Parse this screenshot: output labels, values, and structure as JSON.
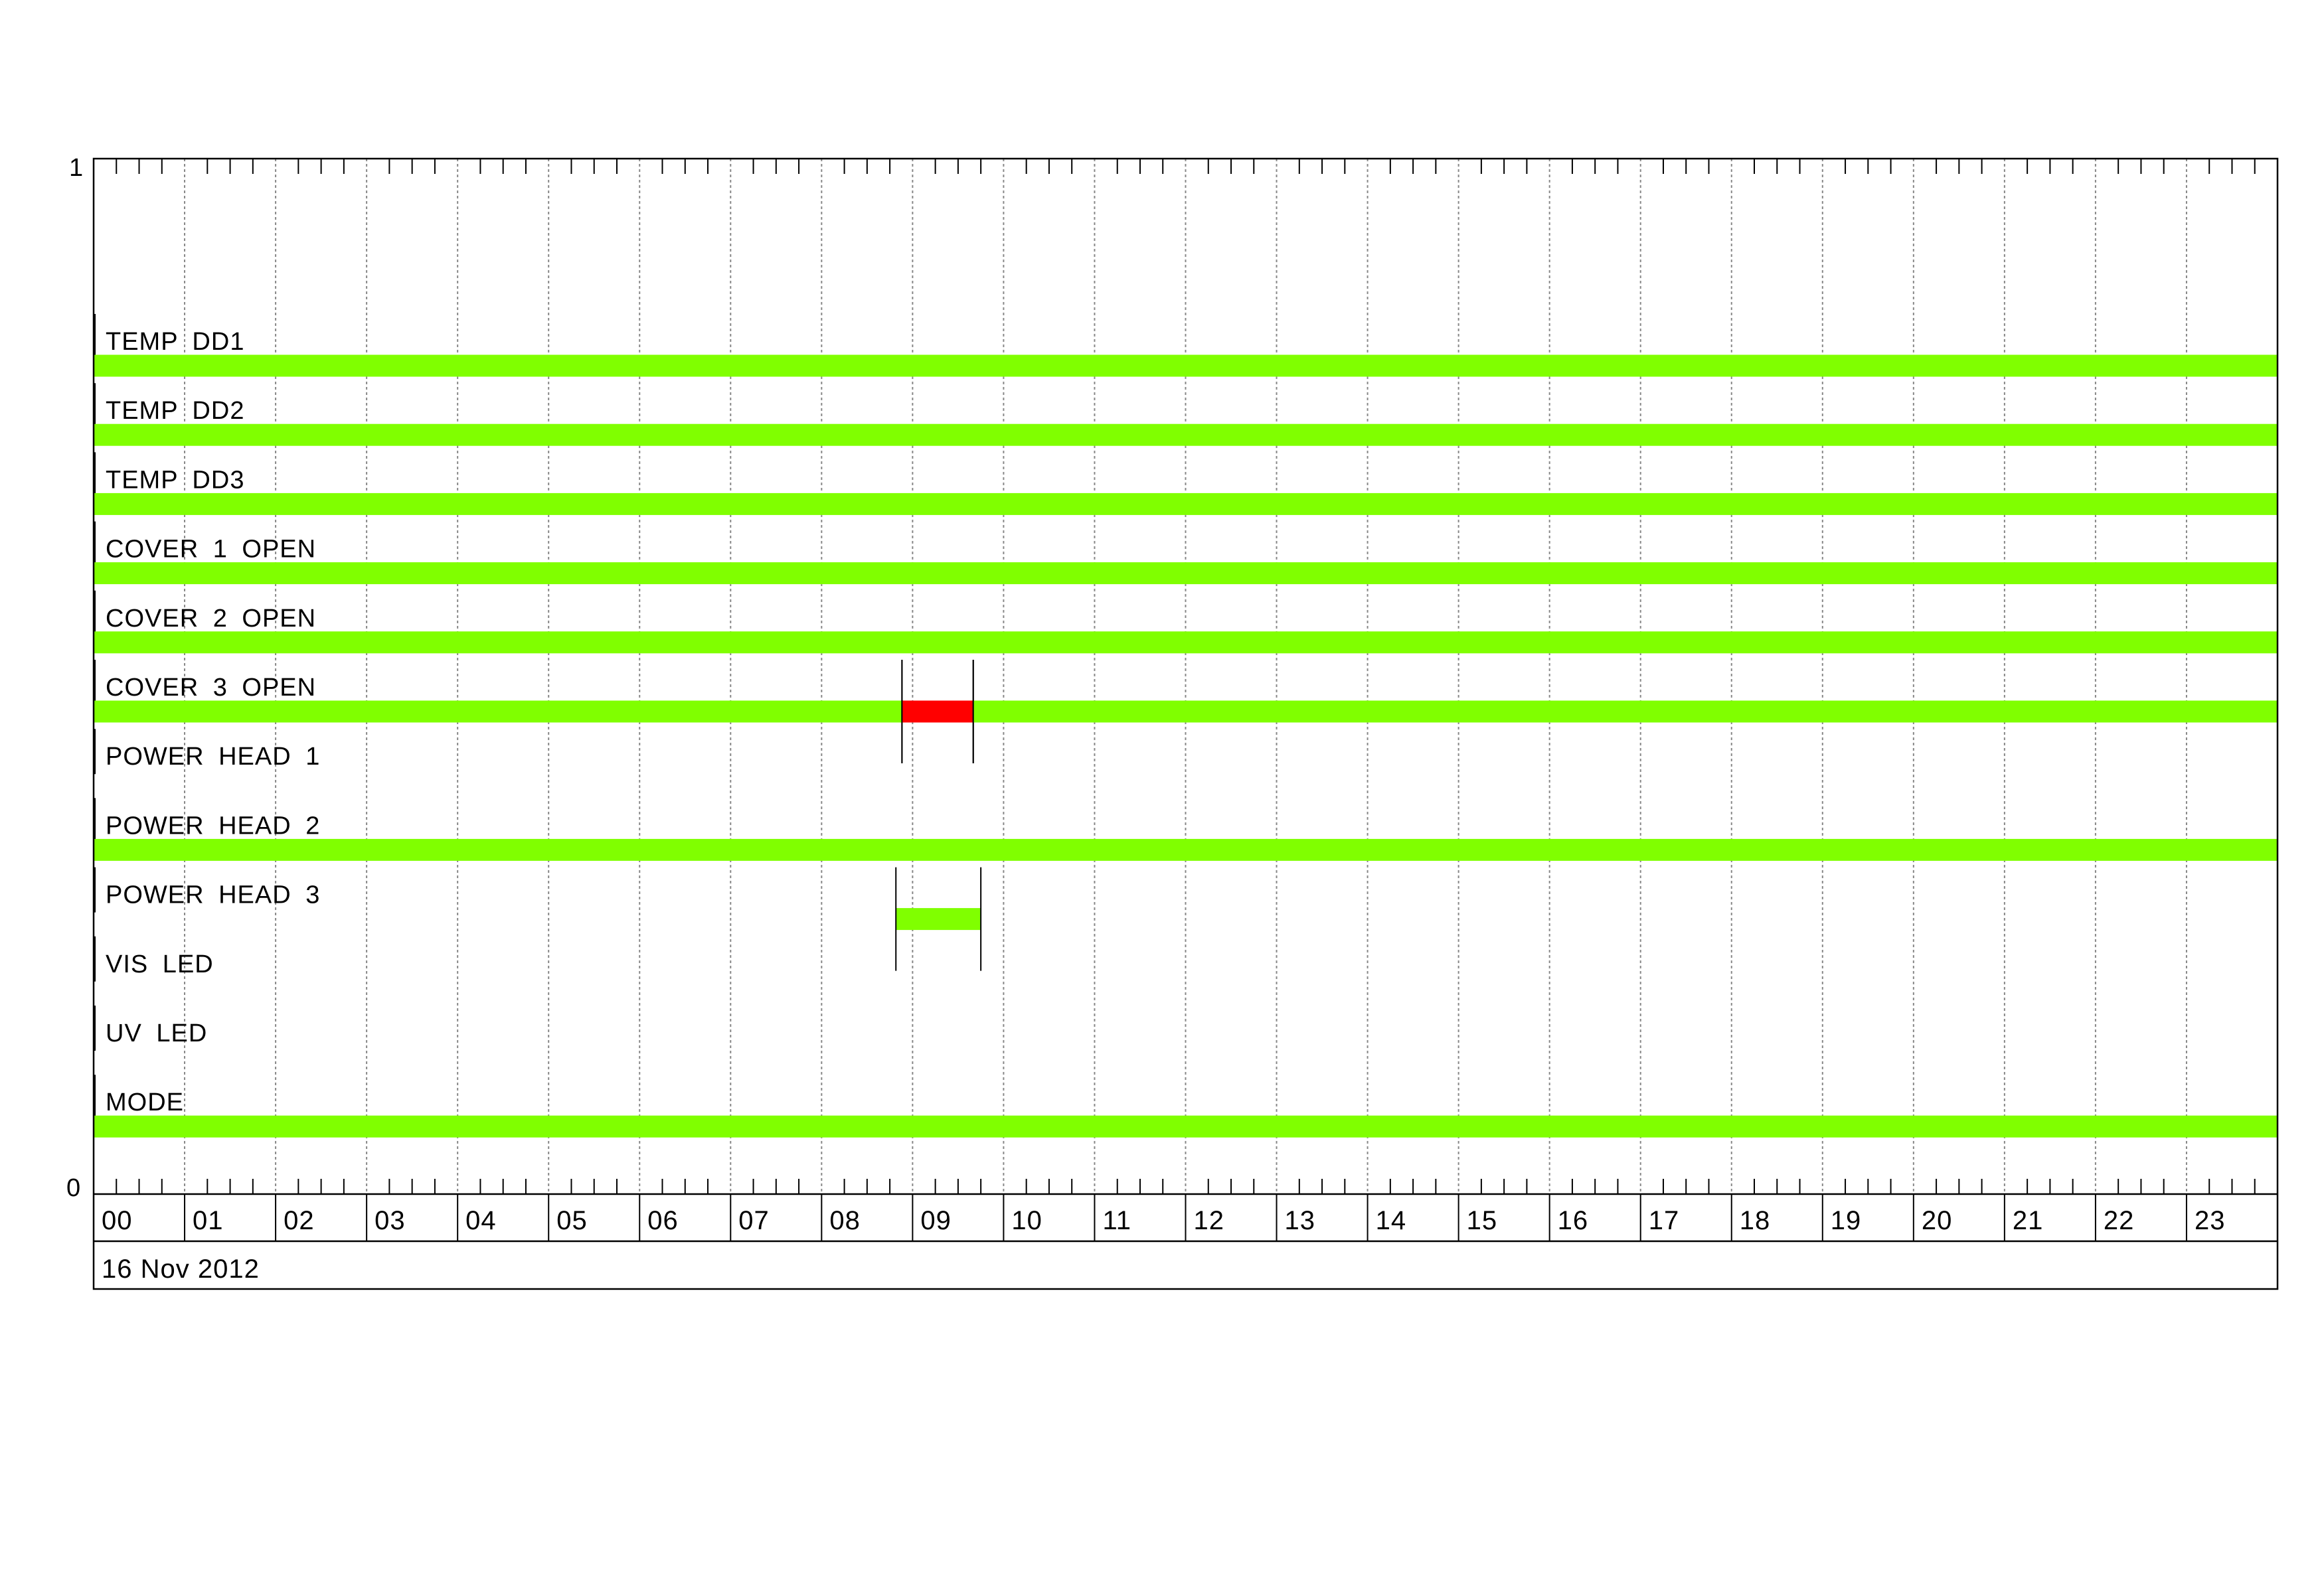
{
  "chart_data": {
    "type": "timeline",
    "date_label": "16 Nov 2012",
    "y_axis": {
      "top_label": "1",
      "bottom_label": "0"
    },
    "x_axis": {
      "unit": "hour",
      "range": [
        0,
        24
      ],
      "tick_labels": [
        "00",
        "01",
        "02",
        "03",
        "04",
        "05",
        "06",
        "07",
        "08",
        "09",
        "10",
        "11",
        "12",
        "13",
        "14",
        "15",
        "16",
        "17",
        "18",
        "19",
        "20",
        "21",
        "22",
        "23"
      ],
      "minor_ticks_per_hour": 4,
      "grid": true
    },
    "colors": {
      "ok": "#80ff00",
      "alarm": "#ff0000",
      "grid": "#888888"
    },
    "rows": [
      {
        "label": "TEMP DD1",
        "segments": [
          {
            "start": "00:00",
            "end": "24:00",
            "state": "ok"
          }
        ]
      },
      {
        "label": "TEMP DD2",
        "segments": [
          {
            "start": "00:00",
            "end": "24:00",
            "state": "ok"
          }
        ]
      },
      {
        "label": "TEMP DD3",
        "segments": [
          {
            "start": "00:00",
            "end": "24:00",
            "state": "ok"
          }
        ]
      },
      {
        "label": "COVER 1 OPEN",
        "segments": [
          {
            "start": "00:00",
            "end": "24:00",
            "state": "ok"
          }
        ]
      },
      {
        "label": "COVER 2 OPEN",
        "segments": [
          {
            "start": "00:00",
            "end": "24:00",
            "state": "ok"
          }
        ]
      },
      {
        "label": "COVER 3 OPEN",
        "segments": [
          {
            "start": "00:00",
            "end": "08:53",
            "state": "ok"
          },
          {
            "start": "08:53",
            "end": "09:40",
            "state": "alarm"
          },
          {
            "start": "09:40",
            "end": "24:00",
            "state": "ok"
          }
        ]
      },
      {
        "label": "POWER HEAD 1",
        "segments": []
      },
      {
        "label": "POWER HEAD 2",
        "segments": [
          {
            "start": "00:00",
            "end": "24:00",
            "state": "ok"
          }
        ]
      },
      {
        "label": "POWER HEAD 3",
        "segments": [
          {
            "start": "08:49",
            "end": "09:45",
            "state": "ok"
          }
        ]
      },
      {
        "label": "VIS LED",
        "segments": []
      },
      {
        "label": "UV LED",
        "segments": []
      },
      {
        "label": "MODE",
        "segments": [
          {
            "start": "00:00",
            "end": "24:00",
            "state": "ok"
          }
        ]
      }
    ]
  }
}
